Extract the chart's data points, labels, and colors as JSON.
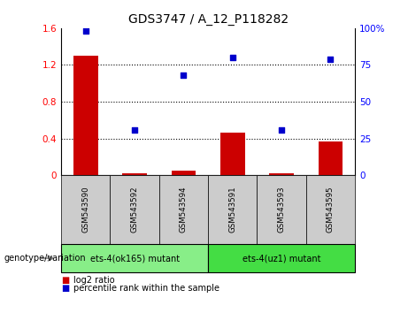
{
  "title": "GDS3747 / A_12_P118282",
  "categories": [
    "GSM543590",
    "GSM543592",
    "GSM543594",
    "GSM543591",
    "GSM543593",
    "GSM543595"
  ],
  "log2_ratio": [
    1.3,
    0.02,
    0.05,
    0.46,
    0.02,
    0.37
  ],
  "percentile_rank": [
    98,
    31,
    68,
    80,
    31,
    79
  ],
  "bar_color": "#cc0000",
  "dot_color": "#0000cc",
  "ylim_left": [
    0,
    1.6
  ],
  "ylim_right": [
    0,
    100
  ],
  "yticks_left": [
    0,
    0.4,
    0.8,
    1.2,
    1.6
  ],
  "ytick_labels_left": [
    "0",
    "0.4",
    "0.8",
    "1.2",
    "1.6"
  ],
  "yticks_right": [
    0,
    25,
    50,
    75,
    100
  ],
  "ytick_labels_right": [
    "0",
    "25",
    "50",
    "75",
    "100%"
  ],
  "group1_label": "ets-4(ok165) mutant",
  "group2_label": "ets-4(uz1) mutant",
  "group1_indices": [
    0,
    1,
    2
  ],
  "group2_indices": [
    3,
    4,
    5
  ],
  "group1_color": "#88ee88",
  "group2_color": "#44dd44",
  "group_row_label": "genotype/variation",
  "legend_bar_label": "log2 ratio",
  "legend_dot_label": "percentile rank within the sample",
  "sample_box_color": "#cccccc",
  "plot_bg_color": "#ffffff",
  "hline_positions": [
    0.4,
    0.8,
    1.2
  ]
}
